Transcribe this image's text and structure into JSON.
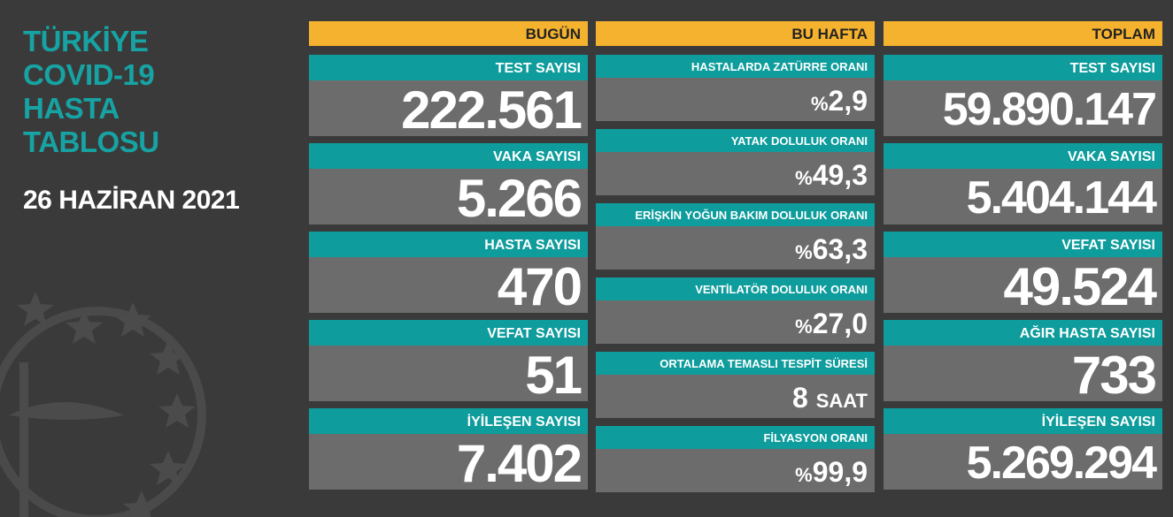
{
  "title_lines": [
    "TÜRKİYE",
    "COVID-19",
    "HASTA",
    "TABLOSU"
  ],
  "date": "26 HAZİRAN 2021",
  "columns": [
    {
      "header": "BUGÜN",
      "cards": [
        {
          "label": "TEST SAYISI",
          "value": "222.561"
        },
        {
          "label": "VAKA SAYISI",
          "value": "5.266"
        },
        {
          "label": "HASTA SAYISI",
          "value": "470"
        },
        {
          "label": "VEFAT SAYISI",
          "value": "51"
        },
        {
          "label": "İYİLEŞEN SAYISI",
          "value": "7.402"
        }
      ]
    },
    {
      "header": "BU HAFTA",
      "cards": [
        {
          "label": "HASTALARDA ZATÜRRE ORANI",
          "prefix": "%",
          "value": "2,9"
        },
        {
          "label": "YATAK DOLULUK ORANI",
          "prefix": "%",
          "value": "49,3"
        },
        {
          "label": "ERİŞKİN YOĞUN BAKIM DOLULUK ORANI",
          "prefix": "%",
          "value": "63,3"
        },
        {
          "label": "VENTİLATÖR DOLULUK ORANI",
          "prefix": "%",
          "value": "27,0"
        },
        {
          "label": "ORTALAMA TEMASLI TESPİT SÜRESİ",
          "value": "8",
          "suffix": "SAAT"
        },
        {
          "label": "FİLYASYON ORANI",
          "prefix": "%",
          "value": "99,9"
        }
      ]
    },
    {
      "header": "TOPLAM",
      "cards": [
        {
          "label": "TEST SAYISI",
          "value": "59.890.147"
        },
        {
          "label": "VAKA SAYISI",
          "value": "5.404.144"
        },
        {
          "label": "VEFAT SAYISI",
          "value": "49.524"
        },
        {
          "label": "AĞIR HASTA SAYISI",
          "value": "733"
        },
        {
          "label": "İYİLEŞEN SAYISI",
          "value": "5.269.294"
        }
      ]
    }
  ]
}
